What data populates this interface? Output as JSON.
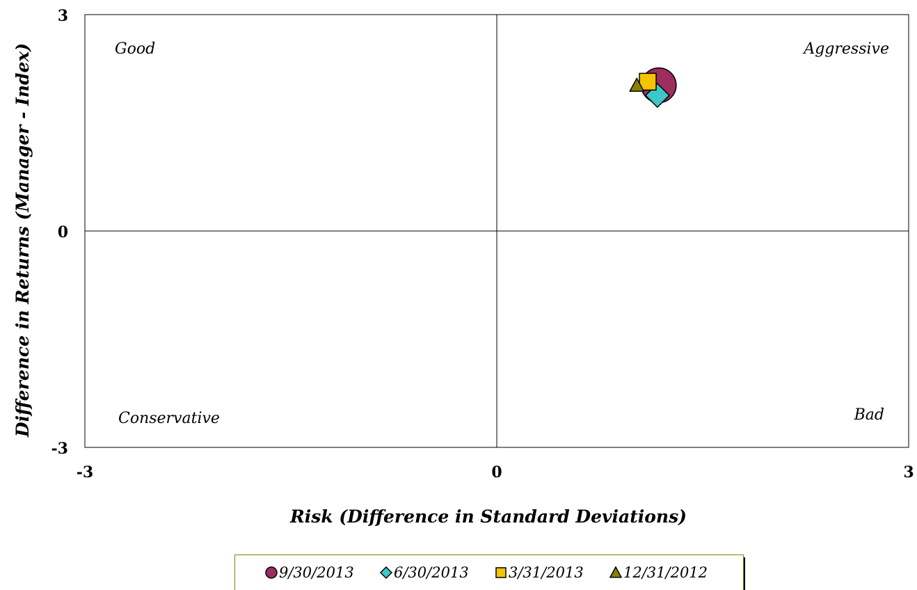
{
  "chart_data": {
    "type": "scatter",
    "title": "",
    "xlabel": "Risk (Difference in Standard Deviations)",
    "ylabel": "Difference in Returns (Manager - Index)",
    "xlim": [
      -3,
      3
    ],
    "ylim": [
      -3,
      3
    ],
    "x_ticks": [
      "-3",
      "0",
      "3"
    ],
    "y_ticks": [
      "-3",
      "0",
      "3"
    ],
    "grid": false,
    "quadrant_labels": {
      "top_left": "Good",
      "top_right": "Aggressive",
      "bottom_left": "Conservative",
      "bottom_right": "Bad"
    },
    "legend_position": "bottom",
    "series": [
      {
        "name": "9/30/2013",
        "marker": "circle",
        "color": "#9B2E5E",
        "x": 1.18,
        "y": 2.02
      },
      {
        "name": "6/30/2013",
        "marker": "diamond",
        "color": "#3CC8C8",
        "x": 1.17,
        "y": 1.88
      },
      {
        "name": "3/31/2013",
        "marker": "square",
        "color": "#F5C400",
        "x": 1.1,
        "y": 2.07
      },
      {
        "name": "12/31/2012",
        "marker": "triangle",
        "color": "#8B8000",
        "x": 1.02,
        "y": 2.02
      }
    ]
  }
}
